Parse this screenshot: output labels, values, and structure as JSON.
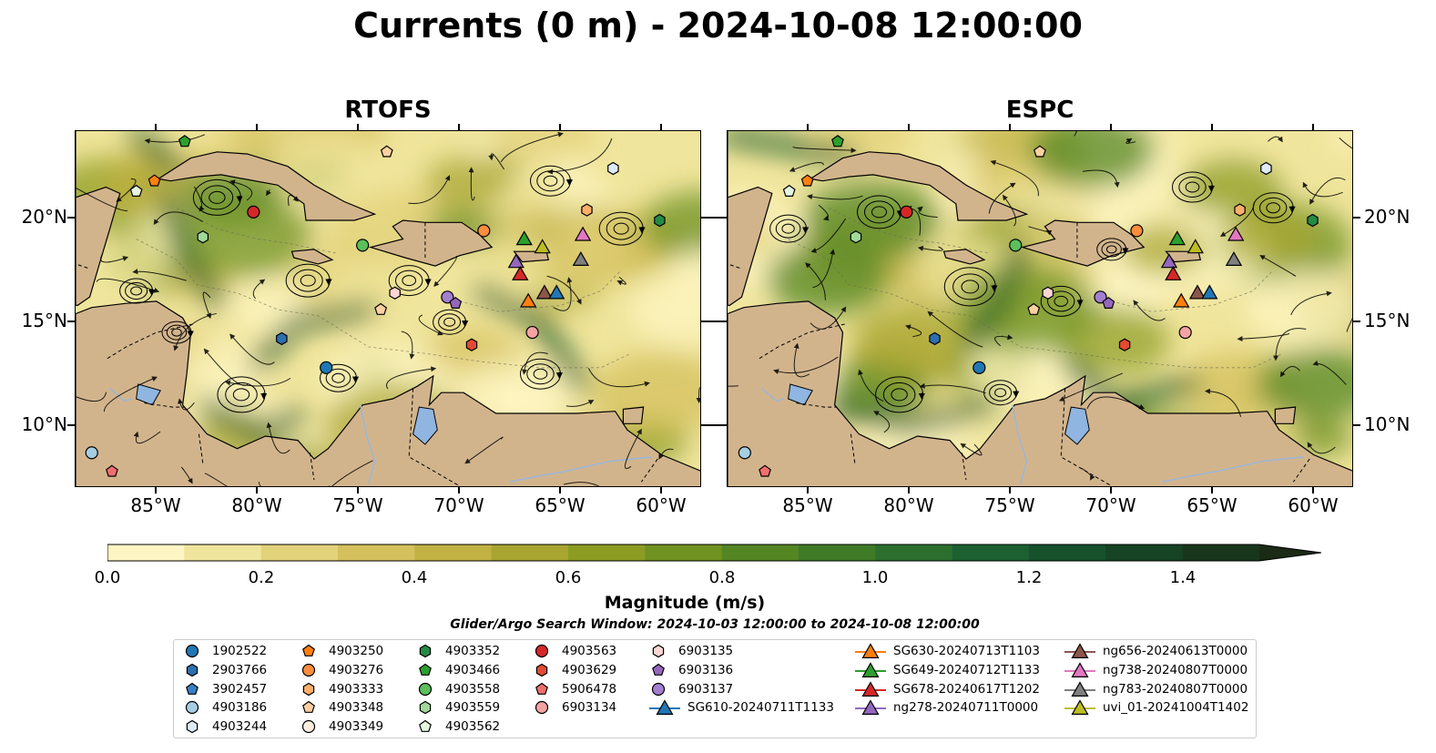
{
  "title": "Currents (0 m) - 2024-10-08 12:00:00",
  "panels": [
    {
      "title": "RTOFS"
    },
    {
      "title": "ESPC"
    }
  ],
  "axes": {
    "lon_labels": [
      "85°W",
      "80°W",
      "75°W",
      "70°W",
      "65°W",
      "60°W"
    ],
    "lat_labels": [
      "20°N",
      "15°N",
      "10°N"
    ],
    "lon_range": [
      -89,
      -58
    ],
    "lat_range": [
      7,
      24.2
    ]
  },
  "colorbar": {
    "title": "Magnitude (m/s)",
    "tick_labels": [
      "0.0",
      "0.2",
      "0.4",
      "0.6",
      "0.8",
      "1.0",
      "1.2",
      "1.4"
    ],
    "range": [
      0,
      1.5
    ],
    "extend": "max",
    "colors": [
      "#fdf5c3",
      "#f0e59c",
      "#e2d27a",
      "#d4c05d",
      "#c2b244",
      "#a8a531",
      "#8c9c22",
      "#6f9220",
      "#538522",
      "#3f7a27",
      "#2b6e2e",
      "#1c6032",
      "#16512c",
      "#164324",
      "#18361c",
      "#1a2a15"
    ]
  },
  "search_window": "Glider/Argo Search Window: 2024-10-03 12:00:00 to 2024-10-08 12:00:00",
  "colors": {
    "land": "#d2b48c",
    "lake": "#8fb5e0",
    "river": "#9fb6d4"
  },
  "legend": {
    "columns": [
      [
        {
          "label": "1902522",
          "marker": "circle",
          "color": "#1f77b4"
        },
        {
          "label": "2903766",
          "marker": "hexagon",
          "color": "#2b6fb0"
        },
        {
          "label": "3902457",
          "marker": "pentagon",
          "color": "#3a7fc4"
        },
        {
          "label": "4903186",
          "marker": "circle",
          "color": "#a6cee3"
        },
        {
          "label": "4903244",
          "marker": "hexagon",
          "color": "#deebf7"
        }
      ],
      [
        {
          "label": "4903250",
          "marker": "pentagon",
          "color": "#ff7f0e"
        },
        {
          "label": "4903276",
          "marker": "circle",
          "color": "#fd8d3c"
        },
        {
          "label": "4903333",
          "marker": "hexagon",
          "color": "#fdae6b"
        },
        {
          "label": "4903348",
          "marker": "pentagon",
          "color": "#fdd0a2"
        },
        {
          "label": "4903349",
          "marker": "circle",
          "color": "#feedde"
        }
      ],
      [
        {
          "label": "4903352",
          "marker": "hexagon",
          "color": "#238b45"
        },
        {
          "label": "4903466",
          "marker": "pentagon",
          "color": "#2ca02c"
        },
        {
          "label": "4903558",
          "marker": "circle",
          "color": "#5bbf5b"
        },
        {
          "label": "4903559",
          "marker": "hexagon",
          "color": "#a1d99b"
        },
        {
          "label": "4903562",
          "marker": "pentagon",
          "color": "#e5f5e0"
        }
      ],
      [
        {
          "label": "4903563",
          "marker": "circle",
          "color": "#d62728"
        },
        {
          "label": "4903629",
          "marker": "hexagon",
          "color": "#e34a33"
        },
        {
          "label": "5906478",
          "marker": "pentagon",
          "color": "#ef6f6f"
        },
        {
          "label": "6903134",
          "marker": "circle",
          "color": "#f4a3a3"
        }
      ],
      [
        {
          "label": "6903135",
          "marker": "hexagon",
          "color": "#fcd5d5"
        },
        {
          "label": "6903136",
          "marker": "pentagon",
          "color": "#9467bd"
        },
        {
          "label": "6903137",
          "marker": "circle",
          "color": "#a37fd0"
        },
        {
          "label": "SG610-20240711T1133",
          "marker": "triangle-line",
          "color": "#1f77b4"
        }
      ],
      [
        {
          "label": "SG630-20240713T1103",
          "marker": "triangle-line",
          "color": "#ff7f0e"
        },
        {
          "label": "SG649-20240712T1133",
          "marker": "triangle-line",
          "color": "#2ca02c"
        },
        {
          "label": "SG678-20240617T1202",
          "marker": "triangle-line",
          "color": "#d62728"
        },
        {
          "label": "ng278-20240711T0000",
          "marker": "triangle-line",
          "color": "#9467bd"
        }
      ],
      [
        {
          "label": "ng656-20240613T0000",
          "marker": "triangle-line",
          "color": "#8c564b"
        },
        {
          "label": "ng738-20240807T0000",
          "marker": "triangle-line",
          "color": "#e377c2"
        },
        {
          "label": "ng783-20240807T0000",
          "marker": "triangle-line",
          "color": "#7f7f7f"
        },
        {
          "label": "uvi_01-20241004T1402",
          "marker": "triangle-line",
          "color": "#bcbd22"
        }
      ]
    ]
  },
  "markers": [
    {
      "label": "4903250",
      "lon": -85.1,
      "lat": 21.8
    },
    {
      "label": "4903466",
      "lon": -83.6,
      "lat": 23.7
    },
    {
      "label": "4903562",
      "lon": -86.0,
      "lat": 21.3
    },
    {
      "label": "4903348",
      "lon": -73.6,
      "lat": 23.2
    },
    {
      "label": "4903244",
      "lon": -62.4,
      "lat": 22.4
    },
    {
      "label": "4903563",
      "lon": -80.2,
      "lat": 20.3
    },
    {
      "label": "4903559",
      "lon": -82.7,
      "lat": 19.1
    },
    {
      "label": "4903558",
      "lon": -74.8,
      "lat": 18.7
    },
    {
      "label": "4903276",
      "lon": -68.8,
      "lat": 19.4
    },
    {
      "label": "4903333",
      "lon": -63.7,
      "lat": 20.4
    },
    {
      "label": "4903352",
      "lon": -60.1,
      "lat": 19.9
    },
    {
      "label": "6903135",
      "lon": -73.2,
      "lat": 16.4
    },
    {
      "label": "4903348",
      "lon": -73.9,
      "lat": 15.6
    },
    {
      "label": "6903137",
      "lon": -70.6,
      "lat": 16.2
    },
    {
      "label": "6903136",
      "lon": -70.2,
      "lat": 15.9
    },
    {
      "label": "2903766",
      "lon": -78.8,
      "lat": 14.2
    },
    {
      "label": "1902522",
      "lon": -76.6,
      "lat": 12.8
    },
    {
      "label": "4903629",
      "lon": -69.4,
      "lat": 13.9
    },
    {
      "label": "6903134",
      "lon": -66.4,
      "lat": 14.5
    },
    {
      "label": "4903186",
      "lon": -88.2,
      "lat": 8.7
    },
    {
      "label": "5906478",
      "lon": -87.2,
      "lat": 7.8
    },
    {
      "label": "SG649-20240712T1133",
      "lon": -66.8,
      "lat": 19.0
    },
    {
      "label": "uvi_01-20241004T1402",
      "lon": -65.9,
      "lat": 18.6
    },
    {
      "label": "ng738-20240807T0000",
      "lon": -63.9,
      "lat": 19.2
    },
    {
      "label": "ng783-20240807T0000",
      "lon": -64.0,
      "lat": 18.0
    },
    {
      "label": "ng278-20240711T0000",
      "lon": -67.2,
      "lat": 17.9
    },
    {
      "label": "SG678-20240617T1202",
      "lon": -67.0,
      "lat": 17.3
    },
    {
      "label": "SG630-20240713T1103",
      "lon": -66.6,
      "lat": 16.0
    },
    {
      "label": "ng656-20240613T0000",
      "lon": -65.8,
      "lat": 16.4
    },
    {
      "label": "SG610-20240711T1133",
      "lon": -65.2,
      "lat": 16.4
    }
  ]
}
